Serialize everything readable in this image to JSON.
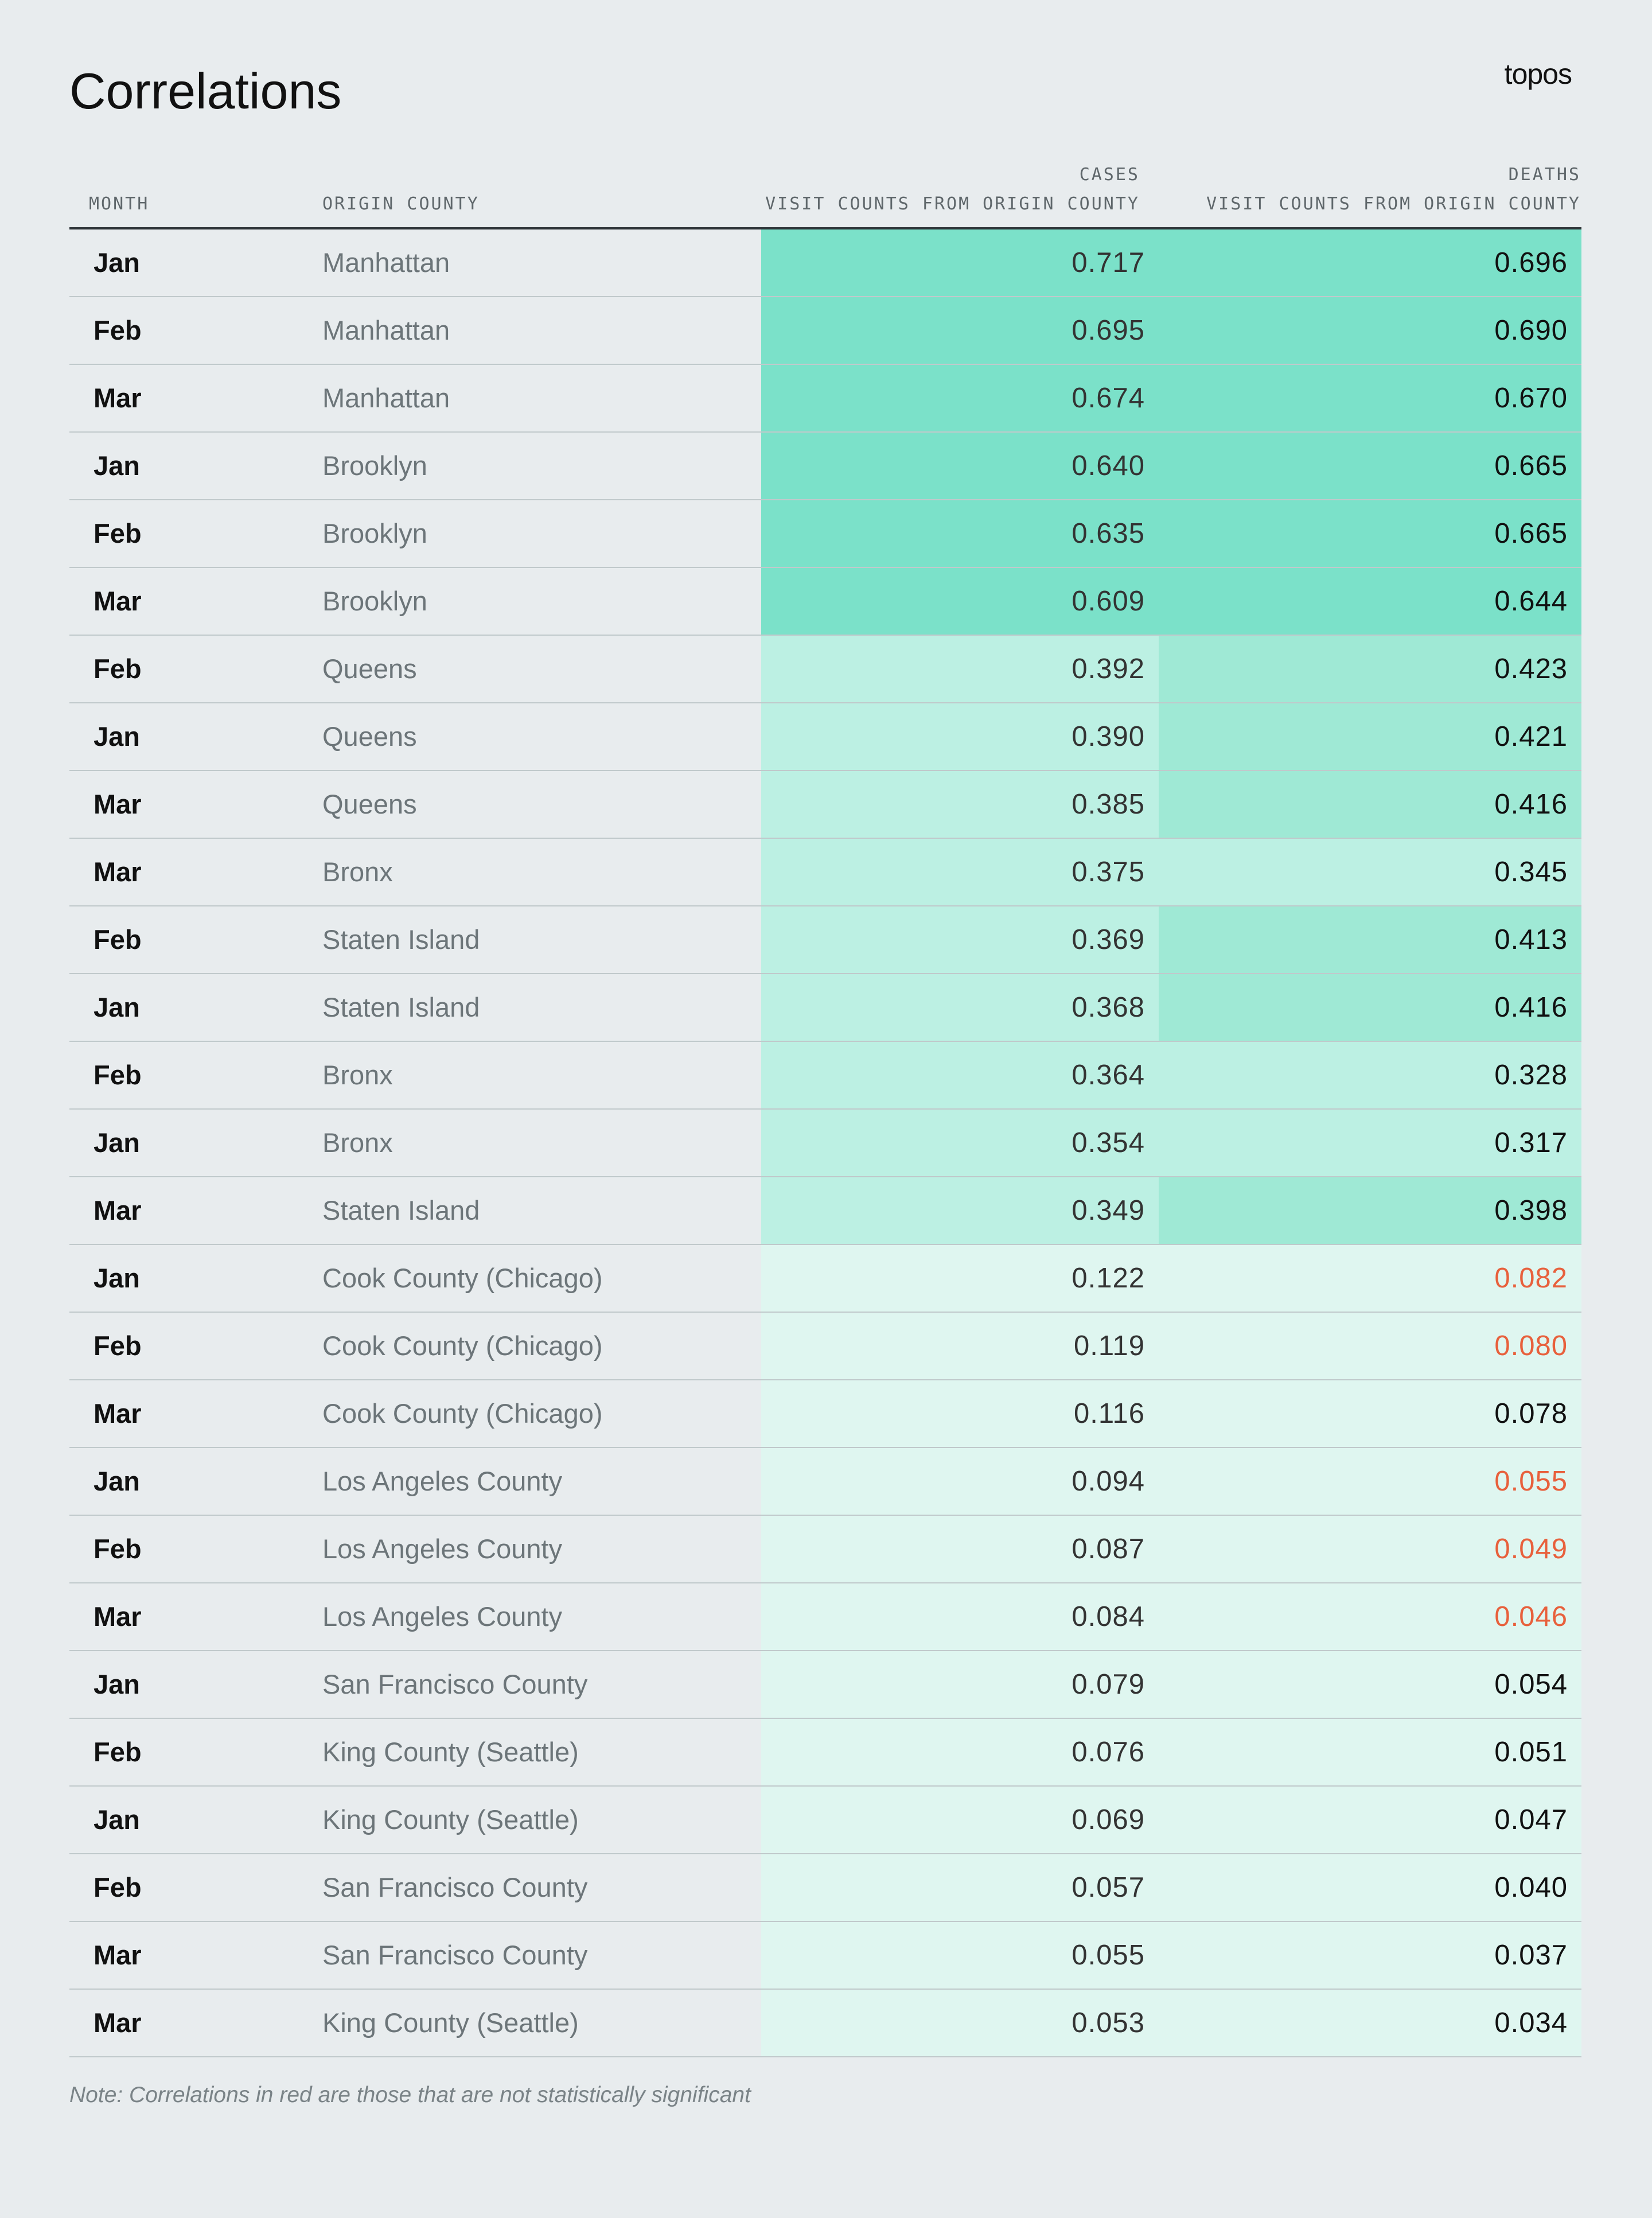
{
  "title": "Correlations",
  "logo": "topos",
  "headers": {
    "month": "MONTH",
    "county": "ORIGIN COUNTY",
    "cases_group": "CASES",
    "cases": "VISIT COUNTS FROM ORIGIN COUNTY",
    "deaths_group": "DEATHS",
    "deaths": "VISIT COUNTS FROM ORIGIN COUNTY"
  },
  "shade_colors": {
    "3": "#7be1c9",
    "2": "#9fe9d5",
    "1": "#bcf0e3",
    "0": "#dff6f0"
  },
  "not_significant_color": "#e8603c",
  "rows": [
    {
      "month": "Jan",
      "county": "Manhattan",
      "cases": "0.717",
      "cases_shade": 3,
      "deaths": "0.696",
      "deaths_shade": 3,
      "significant": true
    },
    {
      "month": "Feb",
      "county": "Manhattan",
      "cases": "0.695",
      "cases_shade": 3,
      "deaths": "0.690",
      "deaths_shade": 3,
      "significant": true
    },
    {
      "month": "Mar",
      "county": "Manhattan",
      "cases": "0.674",
      "cases_shade": 3,
      "deaths": "0.670",
      "deaths_shade": 3,
      "significant": true
    },
    {
      "month": "Jan",
      "county": "Brooklyn",
      "cases": "0.640",
      "cases_shade": 3,
      "deaths": "0.665",
      "deaths_shade": 3,
      "significant": true
    },
    {
      "month": "Feb",
      "county": "Brooklyn",
      "cases": "0.635",
      "cases_shade": 3,
      "deaths": "0.665",
      "deaths_shade": 3,
      "significant": true
    },
    {
      "month": "Mar",
      "county": "Brooklyn",
      "cases": "0.609",
      "cases_shade": 3,
      "deaths": "0.644",
      "deaths_shade": 3,
      "significant": true
    },
    {
      "month": "Feb",
      "county": "Queens",
      "cases": "0.392",
      "cases_shade": 1,
      "deaths": "0.423",
      "deaths_shade": 2,
      "significant": true
    },
    {
      "month": "Jan",
      "county": "Queens",
      "cases": "0.390",
      "cases_shade": 1,
      "deaths": "0.421",
      "deaths_shade": 2,
      "significant": true
    },
    {
      "month": "Mar",
      "county": "Queens",
      "cases": "0.385",
      "cases_shade": 1,
      "deaths": "0.416",
      "deaths_shade": 2,
      "significant": true
    },
    {
      "month": "Mar",
      "county": "Bronx",
      "cases": "0.375",
      "cases_shade": 1,
      "deaths": "0.345",
      "deaths_shade": 1,
      "significant": true
    },
    {
      "month": "Feb",
      "county": "Staten Island",
      "cases": "0.369",
      "cases_shade": 1,
      "deaths": "0.413",
      "deaths_shade": 2,
      "significant": true
    },
    {
      "month": "Jan",
      "county": "Staten Island",
      "cases": "0.368",
      "cases_shade": 1,
      "deaths": "0.416",
      "deaths_shade": 2,
      "significant": true
    },
    {
      "month": "Feb",
      "county": "Bronx",
      "cases": "0.364",
      "cases_shade": 1,
      "deaths": "0.328",
      "deaths_shade": 1,
      "significant": true
    },
    {
      "month": "Jan",
      "county": "Bronx",
      "cases": "0.354",
      "cases_shade": 1,
      "deaths": "0.317",
      "deaths_shade": 1,
      "significant": true
    },
    {
      "month": "Mar",
      "county": "Staten Island",
      "cases": "0.349",
      "cases_shade": 1,
      "deaths": "0.398",
      "deaths_shade": 2,
      "significant": true
    },
    {
      "month": "Jan",
      "county": "Cook County (Chicago)",
      "cases": "0.122",
      "cases_shade": 0,
      "deaths": "0.082",
      "deaths_shade": 0,
      "significant": false
    },
    {
      "month": "Feb",
      "county": "Cook County (Chicago)",
      "cases": "0.119",
      "cases_shade": 0,
      "deaths": "0.080",
      "deaths_shade": 0,
      "significant": false
    },
    {
      "month": "Mar",
      "county": "Cook County (Chicago)",
      "cases": "0.116",
      "cases_shade": 0,
      "deaths": "0.078",
      "deaths_shade": 0,
      "significant": true
    },
    {
      "month": "Jan",
      "county": "Los Angeles County",
      "cases": "0.094",
      "cases_shade": 0,
      "deaths": "0.055",
      "deaths_shade": 0,
      "significant": false
    },
    {
      "month": "Feb",
      "county": "Los Angeles County",
      "cases": "0.087",
      "cases_shade": 0,
      "deaths": "0.049",
      "deaths_shade": 0,
      "significant": false
    },
    {
      "month": "Mar",
      "county": "Los Angeles County",
      "cases": "0.084",
      "cases_shade": 0,
      "deaths": "0.046",
      "deaths_shade": 0,
      "significant": false
    },
    {
      "month": "Jan",
      "county": "San Francisco County",
      "cases": "0.079",
      "cases_shade": 0,
      "deaths": "0.054",
      "deaths_shade": 0,
      "significant": true
    },
    {
      "month": "Feb",
      "county": "King County (Seattle)",
      "cases": "0.076",
      "cases_shade": 0,
      "deaths": "0.051",
      "deaths_shade": 0,
      "significant": true
    },
    {
      "month": "Jan",
      "county": "King County (Seattle)",
      "cases": "0.069",
      "cases_shade": 0,
      "deaths": "0.047",
      "deaths_shade": 0,
      "significant": true
    },
    {
      "month": "Feb",
      "county": "San Francisco County",
      "cases": "0.057",
      "cases_shade": 0,
      "deaths": "0.040",
      "deaths_shade": 0,
      "significant": true
    },
    {
      "month": "Mar",
      "county": "San Francisco County",
      "cases": "0.055",
      "cases_shade": 0,
      "deaths": "0.037",
      "deaths_shade": 0,
      "significant": true
    },
    {
      "month": "Mar",
      "county": "King County (Seattle)",
      "cases": "0.053",
      "cases_shade": 0,
      "deaths": "0.034",
      "deaths_shade": 0,
      "significant": true
    }
  ],
  "note": "Note: Correlations in red are those that are not statistically significant"
}
